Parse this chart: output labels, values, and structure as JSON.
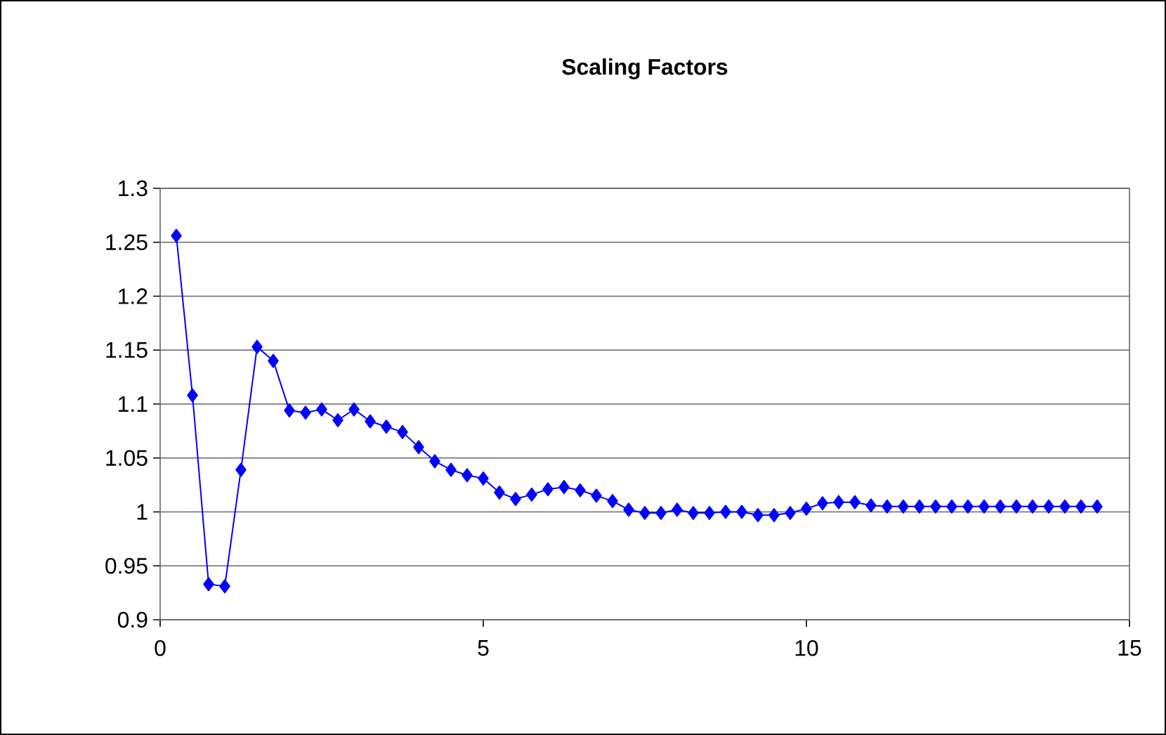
{
  "chart_data": {
    "type": "line",
    "title": "Scaling Factors",
    "x": [
      0.25,
      0.5,
      0.75,
      1.0,
      1.25,
      1.5,
      1.75,
      2.0,
      2.25,
      2.5,
      2.75,
      3.0,
      3.25,
      3.5,
      3.75,
      4.0,
      4.25,
      4.5,
      4.75,
      5.0,
      5.25,
      5.5,
      5.75,
      6.0,
      6.25,
      6.5,
      6.75,
      7.0,
      7.25,
      7.5,
      7.75,
      8.0,
      8.25,
      8.5,
      8.75,
      9.0,
      9.25,
      9.5,
      9.75,
      10.0,
      10.25,
      10.5,
      10.75,
      11.0,
      11.25,
      11.5,
      11.75,
      12.0,
      12.25,
      12.5,
      12.75,
      13.0,
      13.25,
      13.5,
      13.75,
      14.0,
      14.25,
      14.5
    ],
    "series": [
      {
        "color": "#0000ff",
        "values": [
          1.256,
          1.108,
          0.933,
          0.931,
          1.039,
          1.153,
          1.14,
          1.094,
          1.092,
          1.095,
          1.085,
          1.095,
          1.084,
          1.079,
          1.074,
          1.06,
          1.047,
          1.039,
          1.034,
          1.031,
          1.018,
          1.012,
          1.016,
          1.021,
          1.023,
          1.02,
          1.015,
          1.01,
          1.002,
          0.999,
          0.999,
          1.002,
          0.999,
          0.999,
          1.0,
          1.0,
          0.997,
          0.997,
          0.999,
          1.003,
          1.008,
          1.009,
          1.009,
          1.006,
          1.005,
          1.005,
          1.005,
          1.005,
          1.005,
          1.005,
          1.005,
          1.005,
          1.005,
          1.005,
          1.005,
          1.005,
          1.005,
          1.005
        ]
      }
    ],
    "xlim": [
      0,
      15
    ],
    "xticks": [
      0,
      5,
      10,
      15
    ],
    "ylim": [
      0.9,
      1.3
    ],
    "yticks": [
      0.9,
      0.95,
      1,
      1.05,
      1.1,
      1.15,
      1.2,
      1.25,
      1.3
    ],
    "grid": "y",
    "marker": "diamond",
    "line_style": "solid"
  }
}
